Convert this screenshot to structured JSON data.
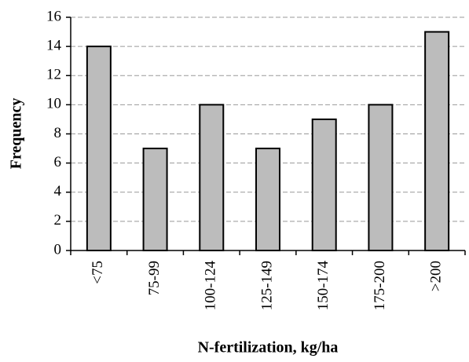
{
  "chart_data": {
    "type": "bar",
    "categories": [
      "<75",
      "75-99",
      "100-124",
      "125-149",
      "150-174",
      "175-200",
      ">200"
    ],
    "values": [
      14,
      7,
      10,
      7,
      9,
      10,
      15
    ],
    "color": "#bcbcbc",
    "x_label": "N-fertilization, kg/ha",
    "y_label": "Frequency",
    "ylim": [
      0,
      16
    ],
    "yticks": [
      0,
      2,
      4,
      6,
      8,
      10,
      12,
      14,
      16
    ],
    "grid": true
  }
}
